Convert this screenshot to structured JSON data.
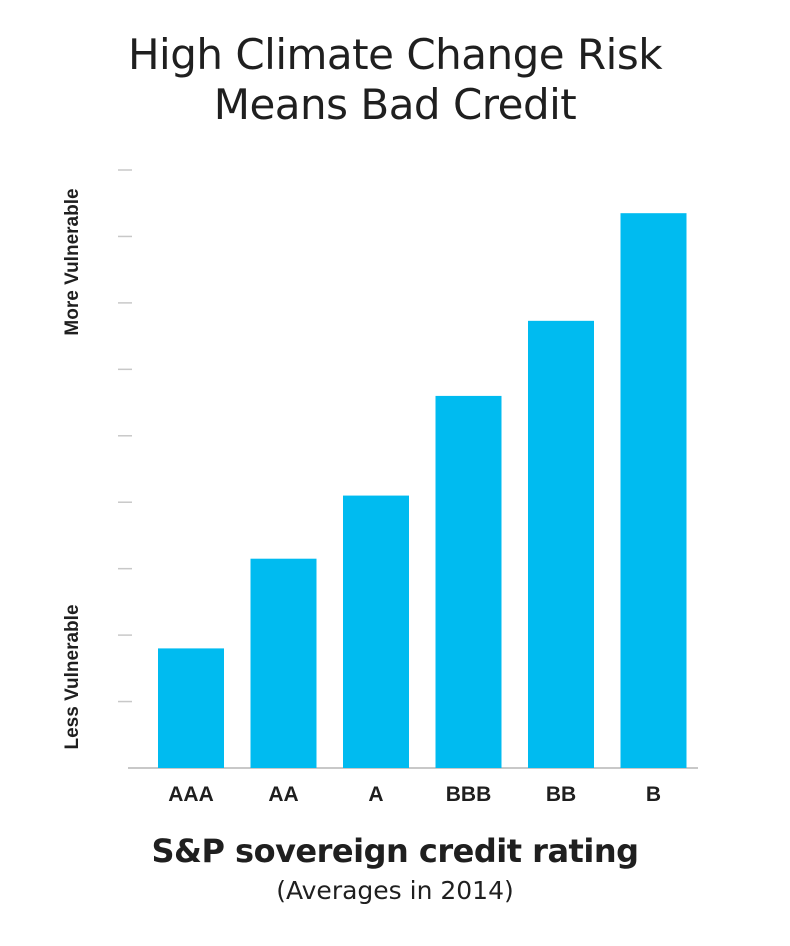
{
  "chart_data": {
    "type": "bar",
    "title": [
      "High Climate Change Risk",
      "Means Bad Credit"
    ],
    "categories": [
      "AAA",
      "AA",
      "A",
      "BBB",
      "BB",
      "B"
    ],
    "values": [
      1.8,
      3.15,
      4.1,
      5.6,
      6.73,
      8.35
    ],
    "ylim": [
      0,
      9
    ],
    "yticks": 9,
    "y_top_label": "More Vulnerable",
    "y_bottom_label": "Less Vulnerable",
    "xlabel": "S&P sovereign credit rating",
    "xsublabel": "(Averages in 2014)",
    "grid": false,
    "bar_color": "#00bbf0",
    "axis_color": "#c8c8c8"
  }
}
